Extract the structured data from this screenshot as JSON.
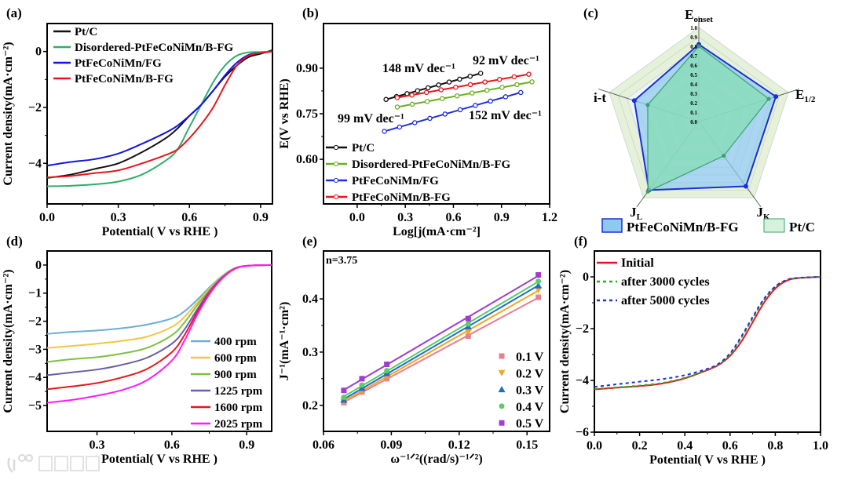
{
  "watermark": "大数跨境",
  "chart_data": [
    {
      "panel": "(a)",
      "type": "line",
      "xlabel": "Potential( V vs RHE  )",
      "ylabel": "Current density(mA·cm⁻²)",
      "xlim": [
        0,
        0.95
      ],
      "ylim": [
        -5.45,
        1.0
      ],
      "xticks": [
        "0.0",
        "0.3",
        "0.6",
        "0.9"
      ],
      "yticks": [
        "0",
        "-2",
        "-4"
      ],
      "legend_position": "top-left",
      "x": [
        0,
        0.1,
        0.2,
        0.3,
        0.4,
        0.5,
        0.55,
        0.6,
        0.65,
        0.7,
        0.75,
        0.8,
        0.85,
        0.9,
        0.95
      ],
      "series": [
        {
          "name": "Pt/C",
          "color": "#111111",
          "values": [
            -4.52,
            -4.4,
            -4.2,
            -4.0,
            -3.6,
            -3.1,
            -2.75,
            -2.3,
            -1.9,
            -1.4,
            -0.9,
            -0.5,
            -0.2,
            -0.08,
            0.05
          ]
        },
        {
          "name": "Disordered-PtFeCoNiMn/B-FG",
          "color": "#2fae6b",
          "values": [
            -4.82,
            -4.8,
            -4.75,
            -4.65,
            -4.4,
            -3.9,
            -3.5,
            -2.7,
            -1.9,
            -1.1,
            -0.5,
            -0.15,
            -0.03,
            -0.02,
            0
          ]
        },
        {
          "name": "PtFeCoNiMn/FG",
          "color": "#1414e6",
          "values": [
            -4.08,
            -3.95,
            -3.85,
            -3.65,
            -3.3,
            -2.9,
            -2.65,
            -2.3,
            -1.9,
            -1.4,
            -0.85,
            -0.4,
            -0.12,
            -0.05,
            0
          ]
        },
        {
          "name": "PtFeCoNiMn/B-FG",
          "color": "#e8161c",
          "values": [
            -4.5,
            -4.45,
            -4.35,
            -4.25,
            -4.0,
            -3.7,
            -3.5,
            -3.1,
            -2.6,
            -2.0,
            -1.2,
            -0.5,
            -0.15,
            -0.05,
            0
          ]
        }
      ]
    },
    {
      "panel": "(b)",
      "type": "line",
      "xlabel": "Log[j(mA·cm⁻²]",
      "ylabel": "E(V vs RHE)",
      "xlim": [
        -0.21,
        1.2
      ],
      "ylim": [
        0.453,
        1.047
      ],
      "xticks": [
        "0.0",
        "0.3",
        "0.6",
        "0.9",
        "1.2"
      ],
      "yticks": [
        "0.60",
        "0.75",
        "0.90"
      ],
      "legend_position": "bottom-left",
      "series": [
        {
          "name": "Pt/C",
          "color": "#111111",
          "start": [
            0.18,
            0.797
          ],
          "end": [
            0.77,
            0.883
          ],
          "n": 10,
          "slope_label": "148 mV dec⁻¹"
        },
        {
          "name": "Disordered-PtFeCoNiMn/B-FG",
          "color": "#6aae23",
          "start": [
            0.25,
            0.772
          ],
          "end": [
            1.09,
            0.855
          ],
          "n": 10,
          "slope_label": "99 mV dec⁻¹"
        },
        {
          "name": "PtFeCoNiMn/FG",
          "color": "#1f2fe0",
          "start": [
            0.17,
            0.692
          ],
          "end": [
            1.02,
            0.82
          ],
          "n": 10,
          "slope_label": "152 mV dec⁻¹"
        },
        {
          "name": "PtFeCoNiMn/B-FG",
          "color": "#e8161c",
          "start": [
            0.25,
            0.803
          ],
          "end": [
            1.07,
            0.88
          ],
          "n": 10,
          "slope_label": "92 mV dec⁻¹"
        }
      ]
    },
    {
      "panel": "(c)",
      "type": "radar",
      "axes": [
        {
          "label": "E",
          "sub": "onset"
        },
        {
          "label": "E",
          "sub": "1/2"
        },
        {
          "label": "J",
          "sub": "K"
        },
        {
          "label": "J",
          "sub": "L"
        },
        {
          "label": "i-t",
          "sub": ""
        }
      ],
      "rticks": [
        "0.0",
        "0.1",
        "0.2",
        "0.3",
        "0.4",
        "0.5",
        "0.6",
        "0.7",
        "0.8",
        "0.9",
        "1.0"
      ],
      "legend_position": "bottom",
      "series": [
        {
          "name": "PtFeCoNiMn/B-FG",
          "color": "#1a2fd8",
          "fill": "#8ec9f0",
          "values": [
            0.82,
            0.86,
            0.85,
            0.9,
            0.72
          ]
        },
        {
          "name": "Pt/C",
          "color": "#3aa070",
          "fill": "#86dcb4",
          "values": [
            0.8,
            0.78,
            0.45,
            0.92,
            0.57
          ]
        }
      ]
    },
    {
      "panel": "(d)",
      "type": "line",
      "xlabel": "Potential( V vs RHE  )",
      "ylabel": "Current density(mA·cm⁻²)",
      "xlim": [
        0.1,
        1.0
      ],
      "ylim": [
        -5.92,
        0.5
      ],
      "xticks": [
        "0.3",
        "0.6",
        "0.9"
      ],
      "yticks": [
        "0",
        "-1",
        "-2",
        "-3",
        "-4",
        "-5"
      ],
      "legend_position": "bottom-right",
      "x": [
        0.1,
        0.2,
        0.3,
        0.4,
        0.5,
        0.6,
        0.65,
        0.7,
        0.75,
        0.8,
        0.85,
        0.9,
        1.0
      ],
      "series": [
        {
          "name": "400 rpm",
          "color": "#6aaed6",
          "values": [
            -2.45,
            -2.38,
            -2.33,
            -2.25,
            -2.12,
            -1.9,
            -1.65,
            -1.25,
            -0.8,
            -0.4,
            -0.12,
            -0.03,
            0
          ]
        },
        {
          "name": "600 rpm",
          "color": "#f5c542",
          "values": [
            -2.95,
            -2.88,
            -2.8,
            -2.7,
            -2.55,
            -2.2,
            -1.85,
            -1.35,
            -0.85,
            -0.42,
            -0.13,
            -0.03,
            0
          ]
        },
        {
          "name": "900 rpm",
          "color": "#7cc142",
          "values": [
            -3.45,
            -3.35,
            -3.28,
            -3.15,
            -2.95,
            -2.5,
            -2.05,
            -1.45,
            -0.9,
            -0.44,
            -0.13,
            -0.03,
            0
          ]
        },
        {
          "name": "1225 rpm",
          "color": "#6b5ea8",
          "values": [
            -3.92,
            -3.82,
            -3.72,
            -3.55,
            -3.3,
            -2.8,
            -2.3,
            -1.6,
            -0.95,
            -0.46,
            -0.14,
            -0.03,
            0
          ]
        },
        {
          "name": "1600 rpm",
          "color": "#e31a1c",
          "values": [
            -4.42,
            -4.32,
            -4.2,
            -4.0,
            -3.7,
            -3.1,
            -2.5,
            -1.7,
            -1.0,
            -0.48,
            -0.14,
            -0.03,
            0
          ]
        },
        {
          "name": "2025 rpm",
          "color": "#ff1aff",
          "values": [
            -4.9,
            -4.8,
            -4.65,
            -4.45,
            -4.1,
            -3.4,
            -2.7,
            -1.8,
            -1.05,
            -0.5,
            -0.15,
            -0.03,
            0
          ]
        }
      ]
    },
    {
      "panel": "(e)",
      "type": "scatter",
      "xlabel": "ω⁻¹ᐟ²((rad/s)⁻¹ᐟ²)",
      "ylabel": "J⁻¹(mA⁻¹·cm²)",
      "annotation": "n=3.75",
      "xlim": [
        0.06,
        0.16
      ],
      "ylim": [
        0.151,
        0.49
      ],
      "xticks": [
        "0.06",
        "0.09",
        "0.12",
        "0.15"
      ],
      "yticks": [
        "0.2",
        "0.3",
        "0.4"
      ],
      "legend_position": "bottom-right",
      "x": [
        0.069,
        0.077,
        0.088,
        0.124,
        0.155
      ],
      "series": [
        {
          "name": "0.1 V",
          "color": "#e7808c",
          "marker": "square",
          "values": [
            0.205,
            0.225,
            0.25,
            0.33,
            0.403
          ]
        },
        {
          "name": "0.2 V",
          "color": "#f5a623",
          "marker": "triangle-down",
          "values": [
            0.207,
            0.228,
            0.255,
            0.338,
            0.417
          ]
        },
        {
          "name": "0.3 V",
          "color": "#1a6fd1",
          "marker": "triangle-up",
          "values": [
            0.21,
            0.232,
            0.26,
            0.348,
            0.425
          ]
        },
        {
          "name": "0.4 V",
          "color": "#5ccb6a",
          "marker": "circle",
          "values": [
            0.215,
            0.238,
            0.265,
            0.353,
            0.433
          ]
        },
        {
          "name": "0.5 V",
          "color": "#a23cd0",
          "marker": "square",
          "values": [
            0.228,
            0.25,
            0.277,
            0.363,
            0.445
          ]
        }
      ]
    },
    {
      "panel": "(f)",
      "type": "line",
      "xlabel": "Potential( V vs RHE  )",
      "ylabel": "Current density(mA·cm⁻²)",
      "xlim": [
        0,
        1.0
      ],
      "ylim": [
        -6,
        1
      ],
      "xticks": [
        "0.0",
        "0.2",
        "0.4",
        "0.6",
        "0.8",
        "1.0"
      ],
      "yticks": [
        "0",
        "-2",
        "-4",
        "-6"
      ],
      "legend_position": "top-left",
      "x": [
        0,
        0.1,
        0.2,
        0.3,
        0.4,
        0.5,
        0.55,
        0.6,
        0.65,
        0.7,
        0.75,
        0.8,
        0.85,
        0.9,
        1.0
      ],
      "series": [
        {
          "name": "Initial",
          "color": "#e8161c",
          "dash": false,
          "values": [
            -4.35,
            -4.28,
            -4.22,
            -4.12,
            -3.92,
            -3.6,
            -3.4,
            -3.05,
            -2.5,
            -1.75,
            -1.0,
            -0.45,
            -0.15,
            -0.05,
            0
          ]
        },
        {
          "name": "after 3000 cycles",
          "color": "#22b022",
          "dash": true,
          "values": [
            -4.33,
            -4.27,
            -4.2,
            -4.1,
            -3.9,
            -3.58,
            -3.38,
            -3.0,
            -2.35,
            -1.6,
            -0.88,
            -0.38,
            -0.12,
            -0.04,
            0
          ]
        },
        {
          "name": "after 5000 cycles",
          "color": "#1f2fe0",
          "dash": true,
          "values": [
            -4.25,
            -4.15,
            -4.05,
            -3.95,
            -3.8,
            -3.55,
            -3.35,
            -2.95,
            -2.3,
            -1.55,
            -0.85,
            -0.37,
            -0.12,
            -0.04,
            0
          ]
        }
      ]
    }
  ]
}
